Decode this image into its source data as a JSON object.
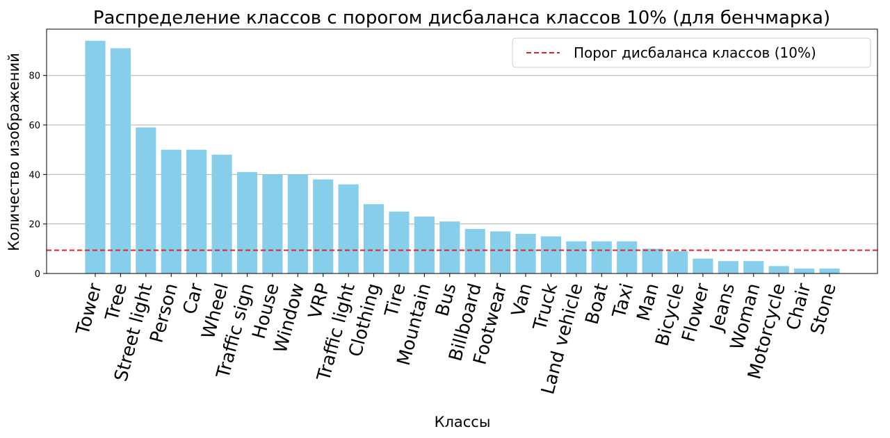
{
  "chart_data": {
    "type": "bar",
    "title": "Распределение классов с порогом дисбаланса классов 10% (для бенчмарка)",
    "xlabel": "Классы",
    "ylabel": "Количество изображений",
    "categories": [
      "Tower",
      "Tree",
      "Street light",
      "Person",
      "Car",
      "Wheel",
      "Traffic sign",
      "House",
      "Window",
      "VRP",
      "Traffic light",
      "Clothing",
      "Tire",
      "Mountain",
      "Bus",
      "Billboard",
      "Footwear",
      "Van",
      "Truck",
      "Land vehicle",
      "Boat",
      "Taxi",
      "Man",
      "Bicycle",
      "Flower",
      "Jeans",
      "Woman",
      "Motorcycle",
      "Chair",
      "Stone"
    ],
    "values": [
      94,
      91,
      59,
      50,
      50,
      48,
      41,
      40,
      40,
      38,
      36,
      28,
      25,
      23,
      21,
      18,
      17,
      16,
      15,
      13,
      13,
      13,
      10,
      9,
      6,
      5,
      5,
      3,
      2,
      2
    ],
    "yticks": [
      0,
      20,
      40,
      60,
      80
    ],
    "ylim": [
      0,
      98.7
    ],
    "grid": "y",
    "bar_color": "#87ceeb",
    "threshold": {
      "value": 9.4,
      "label": "Порог дисбаланса классов (10%)",
      "color": "#e32020",
      "style": "dashed"
    },
    "legend_position": "top-right"
  }
}
